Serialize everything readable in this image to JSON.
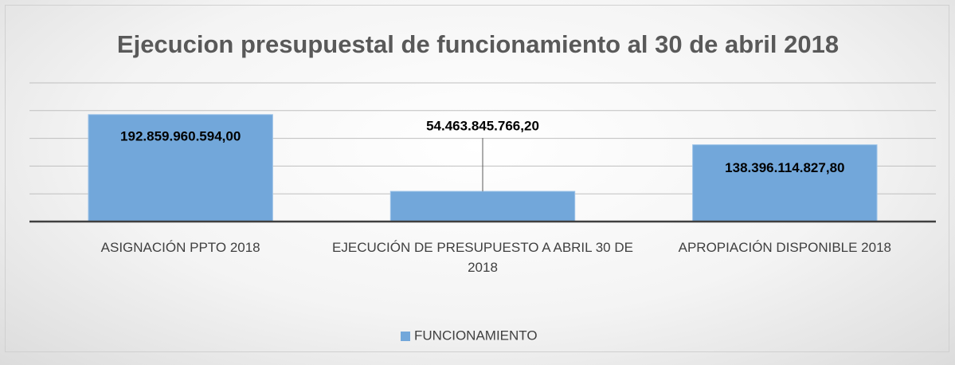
{
  "chart_data": {
    "type": "bar",
    "title": "Ejecucion presupuestal de funcionamiento  al 30 de abril 2018",
    "categories": [
      "ASIGNACIÓN PPTO 2018",
      "EJECUCIÓN DE PRESUPUESTO A  ABRIL 30 DE 2018",
      "APROPIACIÓN DISPONIBLE 2018"
    ],
    "series": [
      {
        "name": "FUNCIONAMIENTO",
        "color": "#72a7da",
        "values": [
          192859960594.0,
          54463845766.2,
          138396114827.8
        ],
        "value_labels": [
          "192.859.960.594,00",
          "54.463.845.766,20",
          "138.396.114.827,80"
        ]
      }
    ],
    "ylim": [
      0,
      250000000000
    ],
    "yticks": [
      0,
      50000000000,
      100000000000,
      150000000000,
      200000000000,
      250000000000
    ],
    "grid": true,
    "legend": "bottom"
  }
}
